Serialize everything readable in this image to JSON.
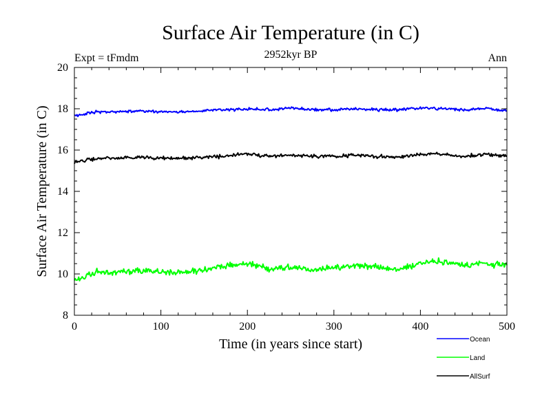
{
  "chart_data": {
    "type": "line",
    "title": "Surface Air Temperature (in C)",
    "subtitle": "2952kyr BP",
    "experiment_label": "Expt = tFmdm",
    "period_label": "Ann",
    "xlabel": "Time (in years since start)",
    "ylabel": "Surface Air Temperature (in C)",
    "xlim": [
      0,
      500
    ],
    "ylim": [
      8,
      20
    ],
    "xticks": [
      0,
      100,
      200,
      300,
      400,
      500
    ],
    "yticks": [
      8,
      10,
      12,
      14,
      16,
      18,
      20
    ],
    "x_minor_step": 20,
    "y_minor_step": 0.5,
    "grid": false,
    "legend_position": "bottom-right",
    "x": [
      0,
      25,
      50,
      75,
      100,
      125,
      150,
      175,
      200,
      225,
      250,
      275,
      300,
      325,
      350,
      375,
      400,
      425,
      450,
      475,
      500
    ],
    "series": [
      {
        "name": "Ocean",
        "color": "#0000ff",
        "values": [
          17.65,
          17.85,
          17.85,
          17.9,
          17.85,
          17.85,
          17.9,
          17.95,
          18.0,
          17.95,
          18.05,
          17.95,
          17.95,
          18.0,
          17.95,
          17.95,
          18.05,
          18.0,
          17.95,
          18.0,
          17.9
        ],
        "noise": 0.1
      },
      {
        "name": "Land",
        "color": "#00ff00",
        "values": [
          9.7,
          10.1,
          10.1,
          10.2,
          10.1,
          10.05,
          10.2,
          10.4,
          10.5,
          10.25,
          10.35,
          10.2,
          10.3,
          10.4,
          10.3,
          10.2,
          10.5,
          10.6,
          10.4,
          10.5,
          10.4
        ],
        "noise": 0.22
      },
      {
        "name": "AllSurf",
        "color": "#000000",
        "values": [
          15.4,
          15.6,
          15.6,
          15.65,
          15.6,
          15.6,
          15.65,
          15.7,
          15.8,
          15.7,
          15.75,
          15.7,
          15.7,
          15.75,
          15.7,
          15.65,
          15.8,
          15.8,
          15.7,
          15.8,
          15.7
        ],
        "noise": 0.12
      }
    ]
  }
}
